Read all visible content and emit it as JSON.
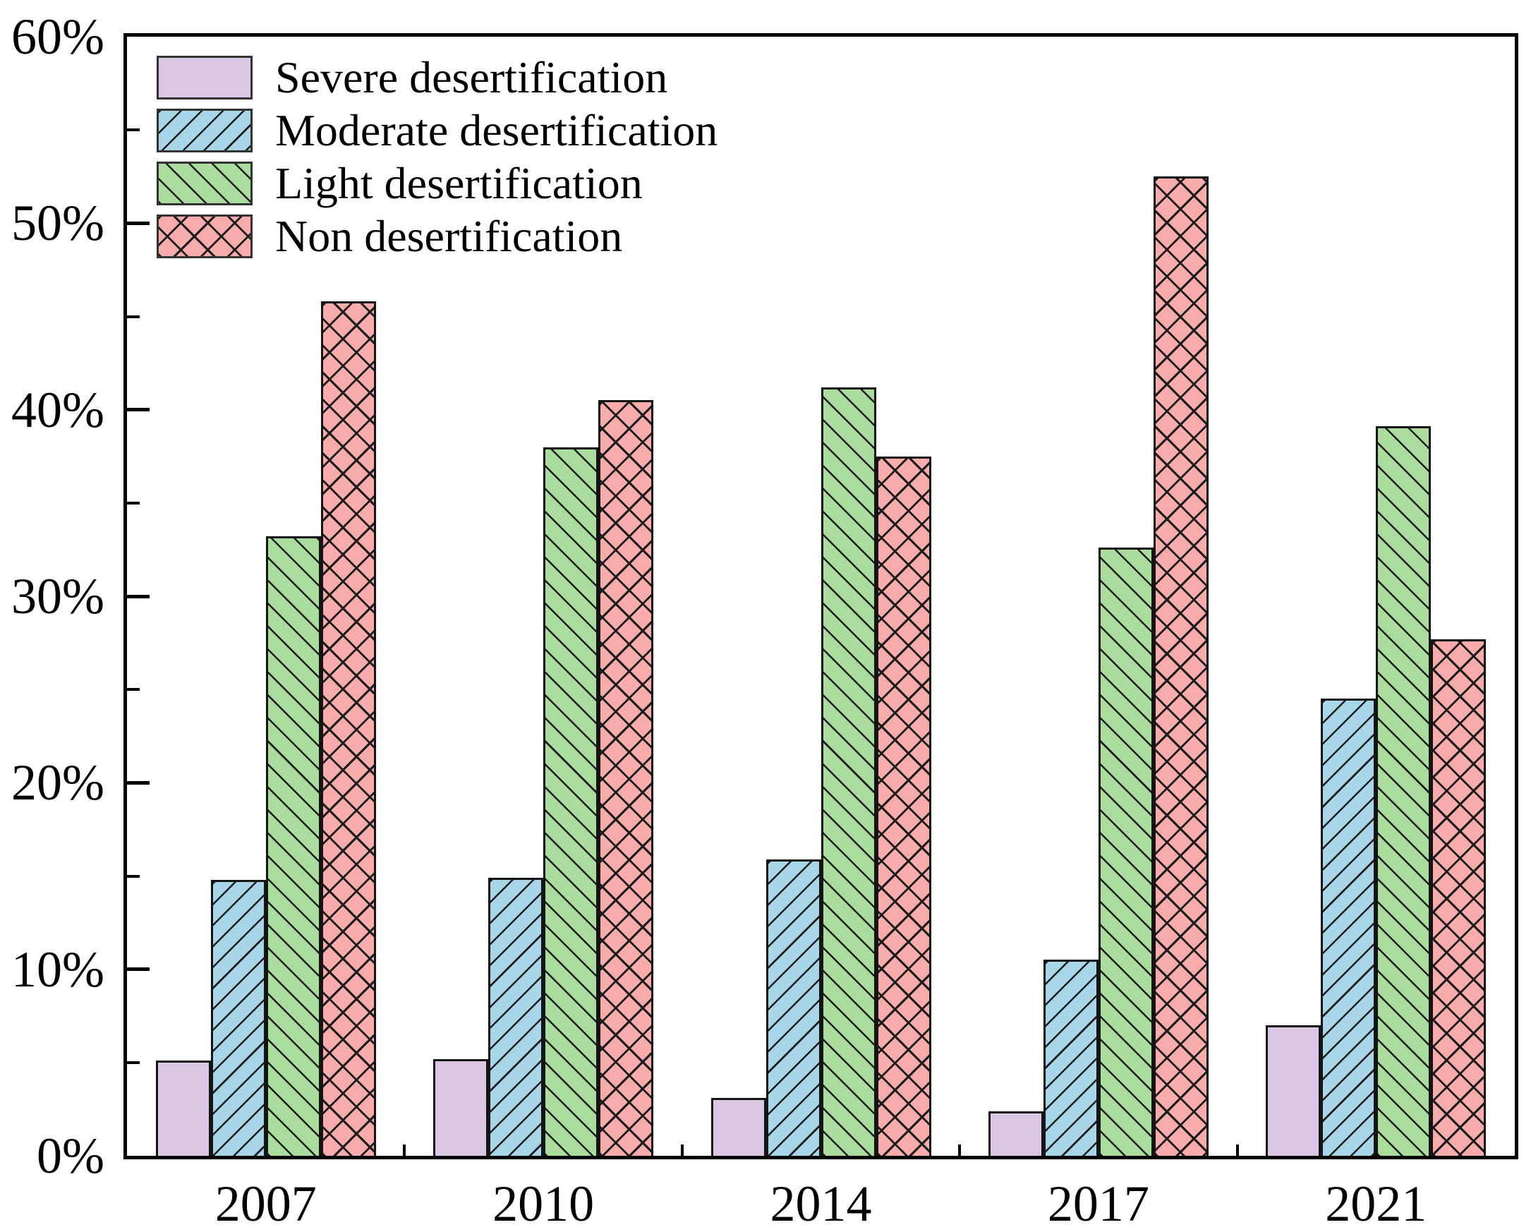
{
  "chart_data": {
    "type": "bar",
    "title": "",
    "xlabel": "",
    "ylabel": "",
    "categories": [
      "2007",
      "2010",
      "2014",
      "2017",
      "2021"
    ],
    "series": [
      {
        "name": "Severe desertification",
        "color": "#dbc6e4",
        "hatch": "none",
        "values": [
          5.1,
          5.2,
          3.1,
          2.4,
          7.0
        ]
      },
      {
        "name": "Moderate desertification",
        "color": "#a9d5e8",
        "hatch": "forward-diagonal",
        "values": [
          14.8,
          14.9,
          15.9,
          10.5,
          24.5
        ]
      },
      {
        "name": "Light desertification",
        "color": "#aadc9d",
        "hatch": "back-diagonal",
        "values": [
          33.2,
          38.0,
          41.2,
          32.6,
          39.1
        ]
      },
      {
        "name": "Non desertification",
        "color": "#f7abab",
        "hatch": "cross",
        "values": [
          45.8,
          40.5,
          37.5,
          52.5,
          27.7
        ]
      }
    ],
    "ylim": [
      0,
      60
    ],
    "y_major_tick_labels": [
      "0%",
      "10%",
      "20%",
      "30%",
      "40%",
      "50%",
      "60%"
    ],
    "y_major_step": 10,
    "y_minor_step": 5,
    "legend_position": "upper-left",
    "grid": false,
    "colors": {
      "axis": "#000000",
      "bar_edge": "#141414",
      "hatch_line": "#1c1c1c",
      "background": "#ffffff"
    }
  }
}
